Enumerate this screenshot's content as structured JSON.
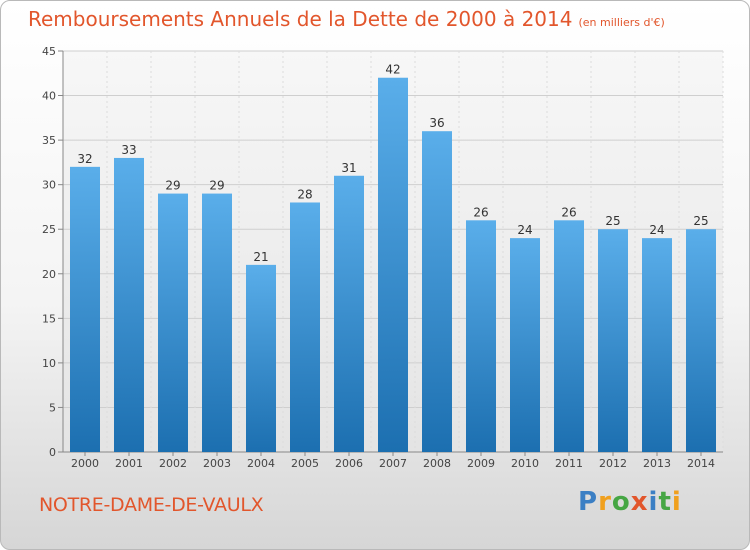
{
  "header": {
    "title": "Remboursements Annuels de la Dette de 2000 à 2014",
    "unit": "(en milliers d'€)"
  },
  "footer": {
    "commune": "NOTRE-DAME-DE-VAULX",
    "logo": "Proxiti"
  },
  "colors": {
    "accent": "#e2562c",
    "bar_top": "#5aaeea",
    "bar_bottom": "#1c6fb0"
  },
  "chart_data": {
    "type": "bar",
    "title": "Remboursements Annuels de la Dette de 2000 à 2014",
    "subtitle": "(en milliers d'€)",
    "xlabel": "",
    "ylabel": "",
    "categories": [
      "2000",
      "2001",
      "2002",
      "2003",
      "2004",
      "2005",
      "2006",
      "2007",
      "2008",
      "2009",
      "2010",
      "2011",
      "2012",
      "2013",
      "2014"
    ],
    "values": [
      32,
      33,
      29,
      29,
      21,
      28,
      31,
      42,
      36,
      26,
      24,
      26,
      25,
      24,
      25
    ],
    "ylim": [
      0,
      45
    ],
    "yticks": [
      0,
      5,
      10,
      15,
      20,
      25,
      30,
      35,
      40,
      45
    ],
    "grid": true,
    "legend": "none"
  }
}
